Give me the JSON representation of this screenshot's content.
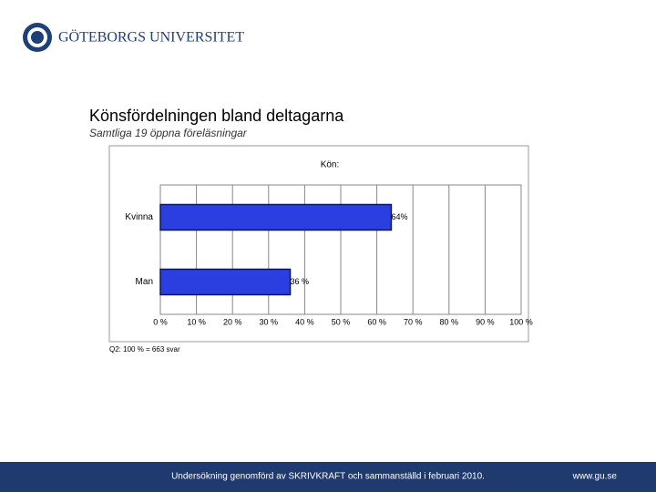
{
  "header": {
    "university": "GÖTEBORGS UNIVERSITET"
  },
  "title": "Könsfördelningen bland deltagarna",
  "subtitle": "Samtliga 19 öppna föreläsningar",
  "chart_data": {
    "type": "bar",
    "orientation": "horizontal",
    "title": "Kön:",
    "categories": [
      "Kvinna",
      "Man"
    ],
    "values": [
      64,
      36
    ],
    "value_labels": [
      "64%",
      "36 %"
    ],
    "color": "#2b3fe0",
    "xlim": [
      0,
      100
    ],
    "xticks": [
      {
        "value": 0,
        "label": "0 %"
      },
      {
        "value": 10,
        "label": "10 %"
      },
      {
        "value": 20,
        "label": "20 %"
      },
      {
        "value": 30,
        "label": "30 %"
      },
      {
        "value": 40,
        "label": "40 %"
      },
      {
        "value": 50,
        "label": "50 %"
      },
      {
        "value": 60,
        "label": "60 %"
      },
      {
        "value": 70,
        "label": "70 %"
      },
      {
        "value": 80,
        "label": "80 %"
      },
      {
        "value": 90,
        "label": "90 %"
      },
      {
        "value": 100,
        "label": "100 %"
      }
    ],
    "grid": true,
    "note": "Q2: 100 % = 663 svar"
  },
  "footer": {
    "text": "Undersökning genomförd av SKRIVKRAFT och sammanställd i februari 2010.",
    "url": "www.gu.se"
  }
}
